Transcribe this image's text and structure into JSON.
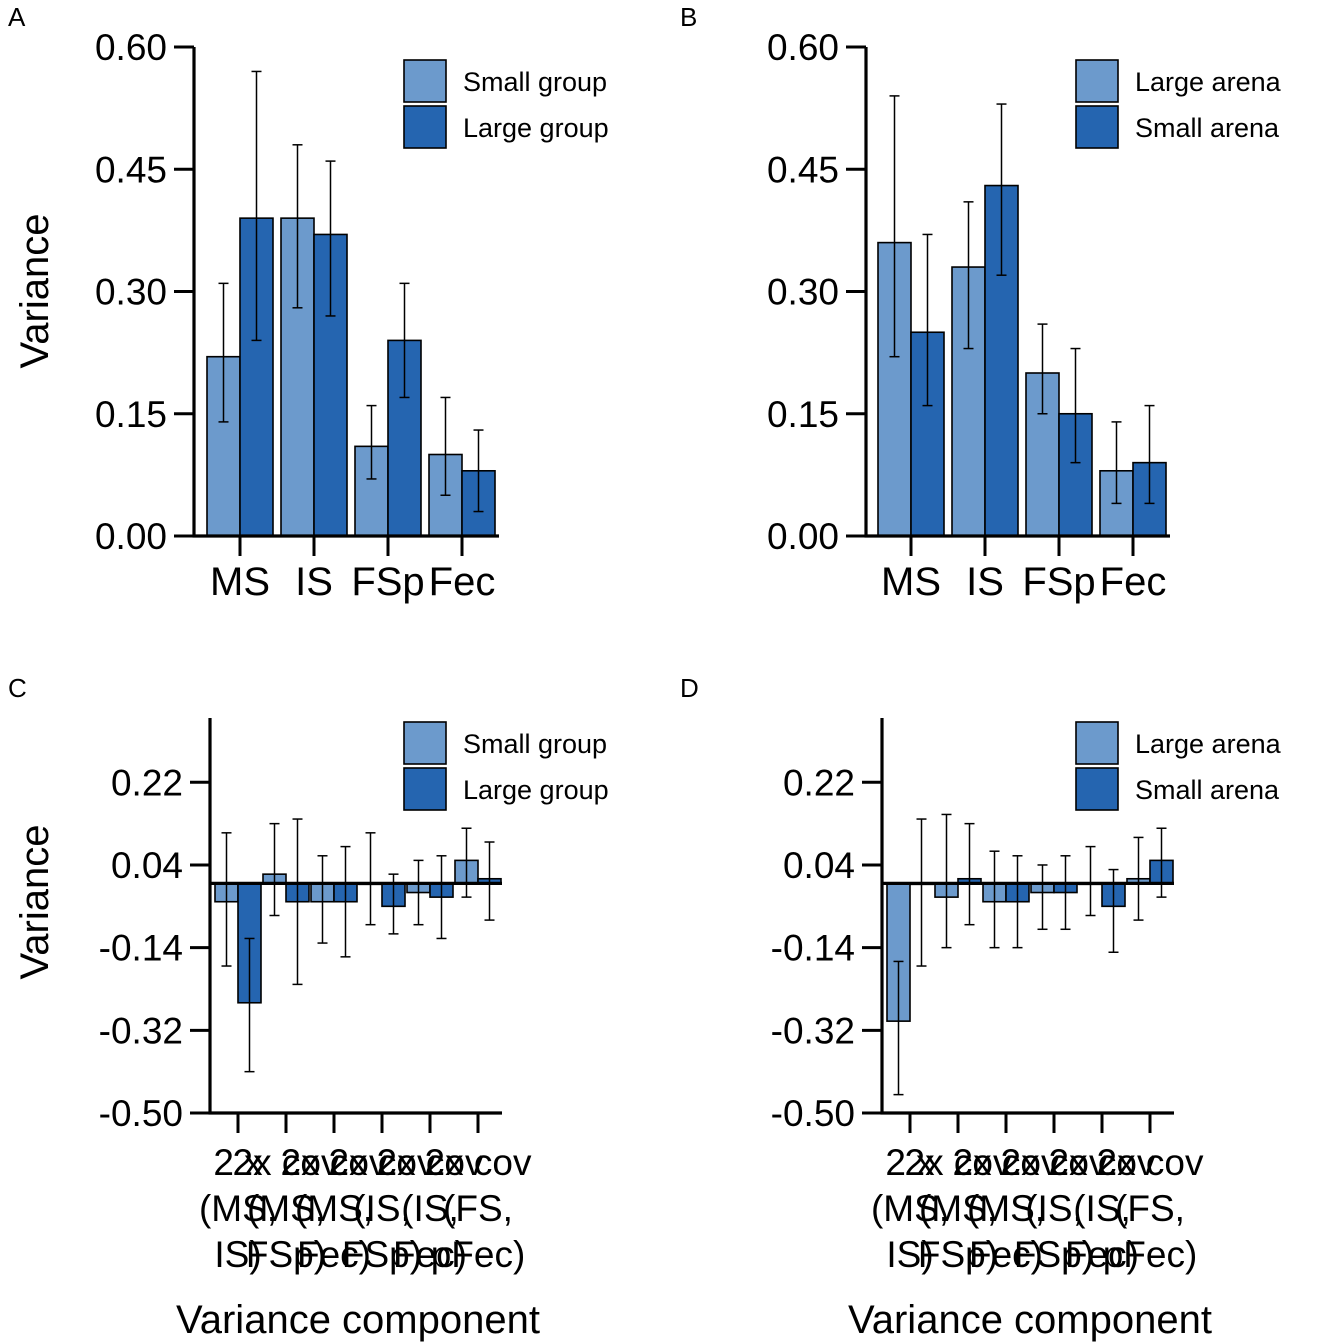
{
  "colors": {
    "light": "#6c9acc",
    "dark": "#2565b0",
    "axis": "#000000"
  },
  "chart_data": [
    {
      "panel_label": "A",
      "type": "bar",
      "ylabel": "Variance",
      "xlabel": "",
      "ylim": [
        0,
        0.6
      ],
      "yticks": [
        "0.60",
        "0.45",
        "0.30",
        "0.15",
        "0.00"
      ],
      "ytick_values": [
        0.6,
        0.45,
        0.3,
        0.15,
        0.0
      ],
      "categories": [
        "MS",
        "IS",
        "FSp",
        "Fec"
      ],
      "series": [
        {
          "name": "Small group",
          "values": [
            0.22,
            0.39,
            0.11,
            0.1
          ],
          "lower": [
            0.14,
            0.28,
            0.07,
            0.05
          ],
          "upper": [
            0.31,
            0.48,
            0.16,
            0.17
          ]
        },
        {
          "name": "Large group",
          "values": [
            0.39,
            0.37,
            0.24,
            0.08
          ],
          "lower": [
            0.24,
            0.27,
            0.17,
            0.03
          ],
          "upper": [
            0.57,
            0.46,
            0.31,
            0.13
          ]
        }
      ],
      "legend_position": "top-right"
    },
    {
      "panel_label": "B",
      "type": "bar",
      "ylabel": "",
      "xlabel": "",
      "ylim": [
        0,
        0.6
      ],
      "yticks": [
        "0.60",
        "0.45",
        "0.30",
        "0.15",
        "0.00"
      ],
      "ytick_values": [
        0.6,
        0.45,
        0.3,
        0.15,
        0.0
      ],
      "categories": [
        "MS",
        "IS",
        "FSp",
        "Fec"
      ],
      "series": [
        {
          "name": "Large arena",
          "values": [
            0.36,
            0.33,
            0.2,
            0.08
          ],
          "lower": [
            0.22,
            0.23,
            0.15,
            0.04
          ],
          "upper": [
            0.54,
            0.41,
            0.26,
            0.14
          ]
        },
        {
          "name": "Small arena",
          "values": [
            0.25,
            0.43,
            0.15,
            0.09
          ],
          "lower": [
            0.16,
            0.32,
            0.09,
            0.04
          ],
          "upper": [
            0.37,
            0.53,
            0.23,
            0.16
          ]
        }
      ],
      "legend_position": "top-right"
    },
    {
      "panel_label": "C",
      "type": "bar",
      "ylabel": "Variance",
      "xlabel": "Variance component",
      "ylim": [
        -0.5,
        0.36
      ],
      "yticks": [
        "0.22",
        "0.04",
        "-0.14",
        "-0.32",
        "-0.50"
      ],
      "ytick_values": [
        0.22,
        0.04,
        -0.14,
        -0.32,
        -0.5
      ],
      "categories": [
        "2 x cov (MS, IS)",
        "2 x cov (MS, FSp)",
        "2 x cov (MS, Fec)",
        "2 x cov (IS, FSp)",
        "2 x cov (IS, Fec)",
        "2 x cov (FS, pFec)"
      ],
      "category_lines": [
        [
          "2 x",
          "(MS,",
          "IS)"
        ],
        [
          "2x cov",
          "(MS,",
          "FSp)"
        ],
        [
          "2x cov",
          "(MS,",
          "Fec)"
        ],
        [
          "2x cov",
          "(IS,",
          "FSp)"
        ],
        [
          "2x cov",
          "(IS,",
          "Fec)"
        ],
        [
          "2x cov",
          "(FS,",
          "pFec)"
        ]
      ],
      "series": [
        {
          "name": "Small group",
          "values": [
            -0.04,
            0.02,
            -0.04,
            0.0,
            -0.02,
            0.05
          ],
          "lower": [
            -0.18,
            -0.07,
            -0.13,
            -0.09,
            -0.09,
            -0.03
          ],
          "upper": [
            0.11,
            0.13,
            0.06,
            0.11,
            0.05,
            0.12
          ]
        },
        {
          "name": "Large group",
          "values": [
            -0.26,
            -0.04,
            -0.04,
            -0.05,
            -0.03,
            0.01
          ],
          "lower": [
            -0.41,
            -0.22,
            -0.16,
            -0.11,
            -0.12,
            -0.08
          ],
          "upper": [
            -0.12,
            0.14,
            0.08,
            0.02,
            0.06,
            0.09
          ]
        }
      ],
      "legend_position": "top-right"
    },
    {
      "panel_label": "D",
      "type": "bar",
      "ylabel": "",
      "xlabel": "Variance component",
      "ylim": [
        -0.5,
        0.36
      ],
      "yticks": [
        "0.22",
        "0.04",
        "-0.14",
        "-0.32",
        "-0.50"
      ],
      "ytick_values": [
        0.22,
        0.04,
        -0.14,
        -0.32,
        -0.5
      ],
      "categories": [
        "2 x cov (MS, IS)",
        "2 x cov (MS, FSp)",
        "2 x cov (MS, Fec)",
        "2 x cov (IS, FSp)",
        "2 x cov (IS, Fec)",
        "2 x cov (FS, pFec)"
      ],
      "category_lines": [
        [
          "2 x",
          "(MS,",
          "IS)"
        ],
        [
          "2x cov",
          "(MS,",
          "FSp)"
        ],
        [
          "2x cov",
          "(MS,",
          "Fec)"
        ],
        [
          "2x cov",
          "(IS,",
          "FSp)"
        ],
        [
          "2x cov",
          "(IS,",
          "Fec)"
        ],
        [
          "2x cov",
          "(FS,",
          "pFec)"
        ]
      ],
      "series": [
        {
          "name": "Large arena",
          "values": [
            -0.3,
            -0.03,
            -0.04,
            -0.02,
            0.0,
            0.01
          ],
          "lower": [
            -0.46,
            -0.14,
            -0.14,
            -0.1,
            -0.07,
            -0.08
          ],
          "upper": [
            -0.17,
            0.15,
            0.07,
            0.04,
            0.08,
            0.1
          ]
        },
        {
          "name": "Small arena",
          "values": [
            0.0,
            0.01,
            -0.04,
            -0.02,
            -0.05,
            0.05
          ],
          "lower": [
            -0.18,
            -0.09,
            -0.14,
            -0.1,
            -0.15,
            -0.03
          ],
          "upper": [
            0.14,
            0.13,
            0.06,
            0.06,
            0.03,
            0.12
          ]
        }
      ],
      "legend_position": "top-right"
    }
  ]
}
